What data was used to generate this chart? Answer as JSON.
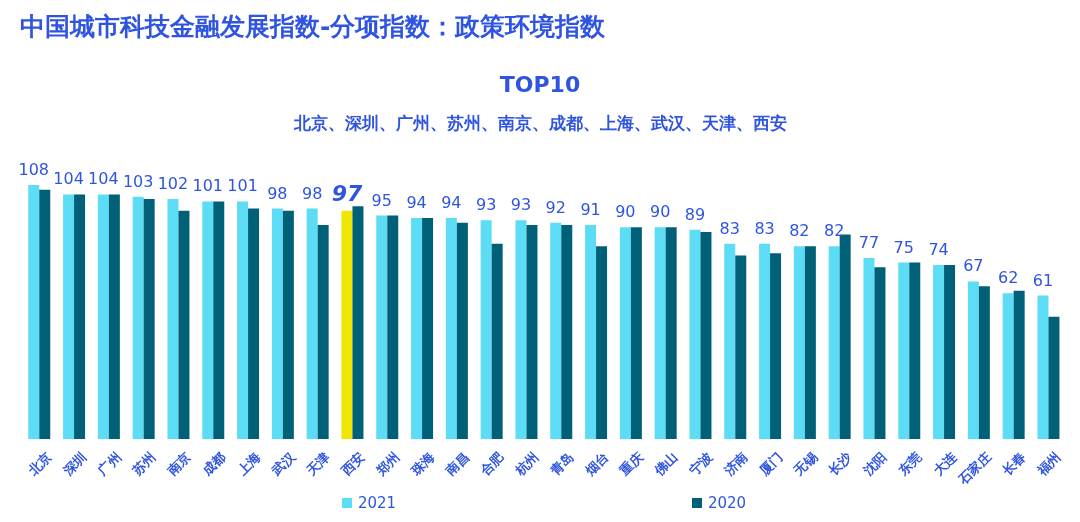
{
  "chart_data": {
    "type": "bar",
    "title": "中国城市科技金融发展指数-分项指数：政策环境指数",
    "subtitle": "TOP10",
    "annotations": [
      "北京、深圳、广州、苏州、南京、成都、上海、武汉、天津、西安"
    ],
    "categories": [
      "北京",
      "深圳",
      "广州",
      "苏州",
      "南京",
      "成都",
      "上海",
      "武汉",
      "天津",
      "西安",
      "郑州",
      "珠海",
      "南昌",
      "合肥",
      "杭州",
      "青岛",
      "烟台",
      "重庆",
      "佛山",
      "宁波",
      "济南",
      "厦门",
      "无锡",
      "长沙",
      "沈阳",
      "东莞",
      "大连",
      "石家庄",
      "长春",
      "福州"
    ],
    "series": [
      {
        "name": "2021",
        "color": "#5ddcf5",
        "colors": [
          "#5ddcf5",
          "#5ddcf5",
          "#5ddcf5",
          "#5ddcf5",
          "#5ddcf5",
          "#5ddcf5",
          "#5ddcf5",
          "#5ddcf5",
          "#5ddcf5",
          "#f0e600",
          "#5ddcf5",
          "#5ddcf5",
          "#5ddcf5",
          "#5ddcf5",
          "#5ddcf5",
          "#5ddcf5",
          "#5ddcf5",
          "#5ddcf5",
          "#5ddcf5",
          "#5ddcf5",
          "#5ddcf5",
          "#5ddcf5",
          "#5ddcf5",
          "#5ddcf5",
          "#5ddcf5",
          "#5ddcf5",
          "#5ddcf5",
          "#5ddcf5",
          "#5ddcf5",
          "#5ddcf5"
        ],
        "data_labels": true,
        "values": [
          108,
          104,
          104,
          103,
          102,
          101,
          101,
          98,
          98,
          97,
          95,
          94,
          94,
          93,
          93,
          92,
          91,
          90,
          90,
          89,
          83,
          83,
          82,
          82,
          77,
          75,
          74,
          67,
          62,
          61
        ]
      },
      {
        "name": "2020",
        "color": "#006078",
        "values": [
          106,
          104,
          104,
          102,
          97,
          101,
          98,
          97,
          91,
          99,
          95,
          94,
          92,
          83,
          91,
          91,
          82,
          90,
          90,
          88,
          78,
          79,
          82,
          87,
          73,
          75,
          74,
          65,
          63,
          52
        ]
      }
    ],
    "legend": "bottom"
  }
}
